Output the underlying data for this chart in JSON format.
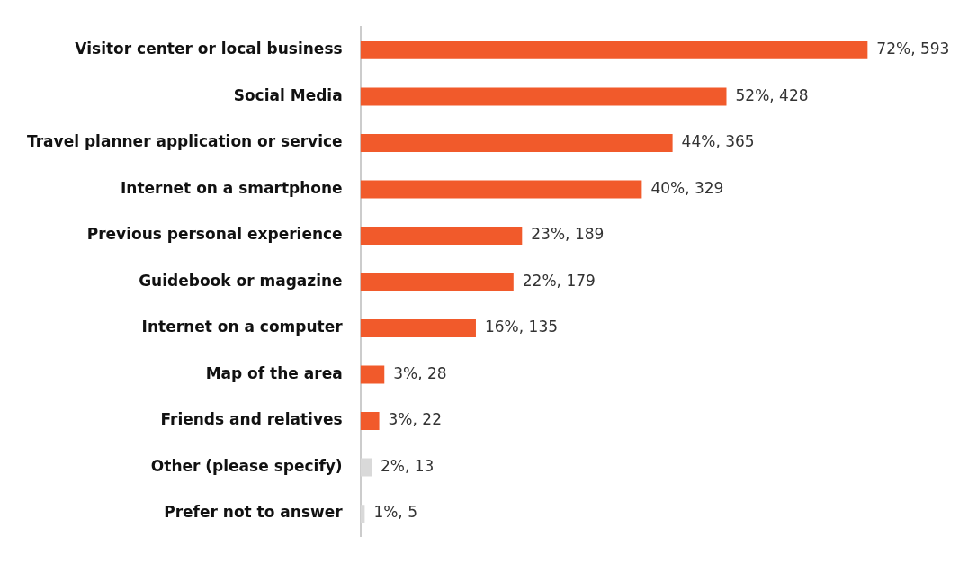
{
  "chart_data": {
    "type": "bar",
    "orientation": "horizontal",
    "categories": [
      "Visitor center or local business",
      "Social Media",
      "Travel planner application or service",
      "Internet on a smartphone",
      "Previous personal experience",
      "Guidebook or magazine",
      "Internet on a computer",
      "Map of the area",
      "Friends and relatives",
      "Other (please specify)",
      "Prefer not to answer"
    ],
    "values": [
      593,
      428,
      365,
      329,
      189,
      179,
      135,
      28,
      22,
      13,
      5
    ],
    "colors": [
      "#f15a2b",
      "#f15a2b",
      "#f15a2b",
      "#f15a2b",
      "#f15a2b",
      "#f15a2b",
      "#f15a2b",
      "#f15a2b",
      "#f15a2b",
      "#d9d9d9",
      "#d9d9d9"
    ],
    "value_labels": [
      "72%, 593",
      "52%, 428",
      "44%, 365",
      "40%, 329",
      "23%, 189",
      "22%, 179",
      "16%, 135",
      "3%, 28",
      "3%, 22",
      "2%, 13",
      "1%, 5"
    ],
    "legend": false
  }
}
